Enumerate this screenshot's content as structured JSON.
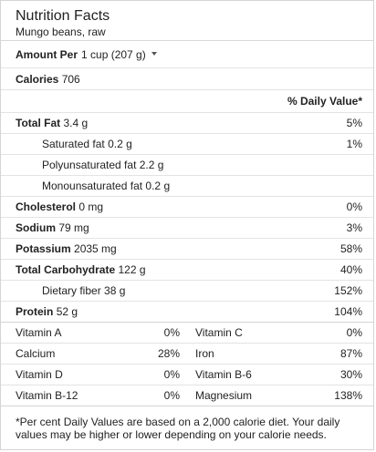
{
  "header": {
    "title": "Nutrition Facts",
    "subtitle": "Mungo beans, raw"
  },
  "amount": {
    "label": "Amount Per",
    "serving": "1 cup (207 g)",
    "icon": "chevron-down-icon"
  },
  "calories": {
    "label": "Calories",
    "value": "706"
  },
  "dv_header": "% Daily Value*",
  "nutrients": {
    "total_fat": {
      "label": "Total Fat",
      "value": "3.4 g",
      "pct": "5%"
    },
    "saturated_fat": {
      "label": "Saturated fat",
      "value": "0.2 g",
      "pct": "1%"
    },
    "polyunsaturated_fat": {
      "label": "Polyunsaturated fat",
      "value": "2.2 g"
    },
    "monounsaturated_fat": {
      "label": "Monounsaturated fat",
      "value": "0.2 g"
    },
    "cholesterol": {
      "label": "Cholesterol",
      "value": "0 mg",
      "pct": "0%"
    },
    "sodium": {
      "label": "Sodium",
      "value": "79 mg",
      "pct": "3%"
    },
    "potassium": {
      "label": "Potassium",
      "value": "2035 mg",
      "pct": "58%"
    },
    "total_carbohydrate": {
      "label": "Total Carbohydrate",
      "value": "122 g",
      "pct": "40%"
    },
    "dietary_fiber": {
      "label": "Dietary fiber",
      "value": "38 g",
      "pct": "152%"
    },
    "protein": {
      "label": "Protein",
      "value": "52 g",
      "pct": "104%"
    }
  },
  "vitamins": [
    {
      "left": {
        "label": "Vitamin A",
        "pct": "0%"
      },
      "right": {
        "label": "Vitamin C",
        "pct": "0%"
      }
    },
    {
      "left": {
        "label": "Calcium",
        "pct": "28%"
      },
      "right": {
        "label": "Iron",
        "pct": "87%"
      }
    },
    {
      "left": {
        "label": "Vitamin D",
        "pct": "0%"
      },
      "right": {
        "label": "Vitamin B-6",
        "pct": "30%"
      }
    },
    {
      "left": {
        "label": "Vitamin B-12",
        "pct": "0%"
      },
      "right": {
        "label": "Magnesium",
        "pct": "138%"
      }
    }
  ],
  "footnote": "*Per cent Daily Values are based on a 2,000 calorie diet. Your daily values may be higher or lower depending on your calorie needs."
}
